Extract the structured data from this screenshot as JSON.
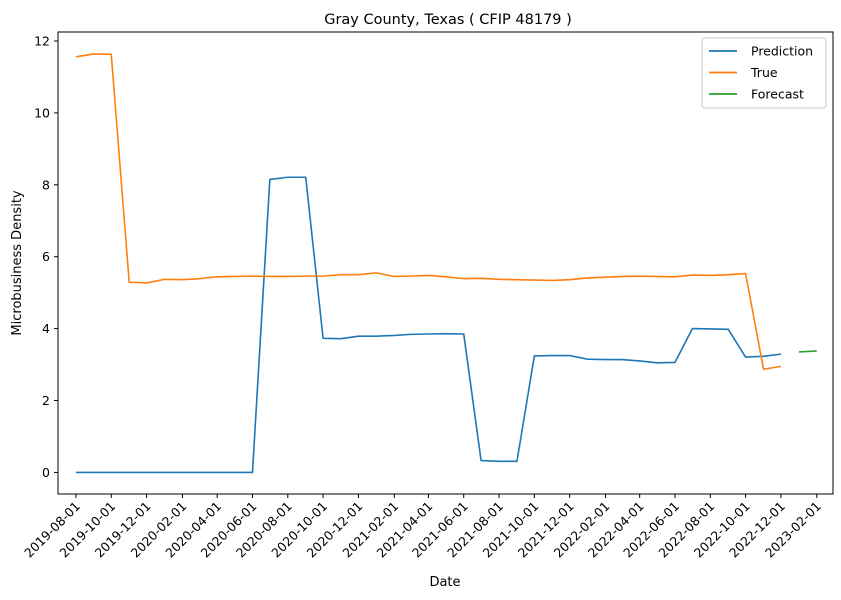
{
  "chart_data": {
    "type": "line",
    "title": "Gray County, Texas ( CFIP 48179 )",
    "xlabel": "Date",
    "ylabel": "Microbusiness Density",
    "xlim": [
      "2019-07-01",
      "2023-03-01"
    ],
    "ylim": [
      -0.6,
      12.25
    ],
    "yticks": [
      0,
      2,
      4,
      6,
      8,
      10,
      12
    ],
    "xticks": [
      "2019-08-01",
      "2019-10-01",
      "2019-12-01",
      "2020-02-01",
      "2020-04-01",
      "2020-06-01",
      "2020-08-01",
      "2020-10-01",
      "2020-12-01",
      "2021-02-01",
      "2021-04-01",
      "2021-06-01",
      "2021-08-01",
      "2021-10-01",
      "2021-12-01",
      "2022-02-01",
      "2022-04-01",
      "2022-06-01",
      "2022-08-01",
      "2022-10-01",
      "2022-12-01",
      "2023-02-01"
    ],
    "grid": false,
    "legend_position": "top-right",
    "series": [
      {
        "name": "Prediction",
        "color": "#1f77b4",
        "points": [
          [
            "2019-08-01",
            0
          ],
          [
            "2019-09-01",
            0
          ],
          [
            "2019-10-01",
            0
          ],
          [
            "2019-11-01",
            0
          ],
          [
            "2019-12-01",
            0
          ],
          [
            "2020-01-01",
            0
          ],
          [
            "2020-02-01",
            0
          ],
          [
            "2020-03-01",
            0
          ],
          [
            "2020-04-01",
            0
          ],
          [
            "2020-05-01",
            0
          ],
          [
            "2020-06-01",
            0
          ],
          [
            "2020-07-01",
            8.15
          ],
          [
            "2020-08-01",
            8.21
          ],
          [
            "2020-09-01",
            8.21
          ],
          [
            "2020-10-01",
            3.73
          ],
          [
            "2020-11-01",
            3.72
          ],
          [
            "2020-12-01",
            3.79
          ],
          [
            "2021-01-01",
            3.79
          ],
          [
            "2021-02-01",
            3.81
          ],
          [
            "2021-03-01",
            3.84
          ],
          [
            "2021-04-01",
            3.85
          ],
          [
            "2021-05-01",
            3.86
          ],
          [
            "2021-06-01",
            3.85
          ],
          [
            "2021-07-01",
            0.33
          ],
          [
            "2021-08-01",
            0.31
          ],
          [
            "2021-09-01",
            0.31
          ],
          [
            "2021-10-01",
            3.24
          ],
          [
            "2021-11-01",
            3.25
          ],
          [
            "2021-12-01",
            3.25
          ],
          [
            "2022-01-01",
            3.15
          ],
          [
            "2022-02-01",
            3.14
          ],
          [
            "2022-03-01",
            3.14
          ],
          [
            "2022-04-01",
            3.1
          ],
          [
            "2022-05-01",
            3.05
          ],
          [
            "2022-06-01",
            3.06
          ],
          [
            "2022-07-01",
            4.0
          ],
          [
            "2022-08-01",
            3.99
          ],
          [
            "2022-09-01",
            3.98
          ],
          [
            "2022-10-01",
            3.21
          ],
          [
            "2022-11-01",
            3.23
          ],
          [
            "2022-12-01",
            3.29
          ]
        ]
      },
      {
        "name": "True",
        "color": "#ff7f0e",
        "points": [
          [
            "2019-08-01",
            11.56
          ],
          [
            "2019-09-01",
            11.64
          ],
          [
            "2019-10-01",
            11.63
          ],
          [
            "2019-11-01",
            5.29
          ],
          [
            "2019-12-01",
            5.27
          ],
          [
            "2020-01-01",
            5.37
          ],
          [
            "2020-02-01",
            5.36
          ],
          [
            "2020-03-01",
            5.39
          ],
          [
            "2020-04-01",
            5.44
          ],
          [
            "2020-05-01",
            5.45
          ],
          [
            "2020-06-01",
            5.46
          ],
          [
            "2020-07-01",
            5.45
          ],
          [
            "2020-08-01",
            5.45
          ],
          [
            "2020-09-01",
            5.46
          ],
          [
            "2020-10-01",
            5.46
          ],
          [
            "2020-11-01",
            5.5
          ],
          [
            "2020-12-01",
            5.5
          ],
          [
            "2021-01-01",
            5.55
          ],
          [
            "2021-02-01",
            5.45
          ],
          [
            "2021-03-01",
            5.46
          ],
          [
            "2021-04-01",
            5.48
          ],
          [
            "2021-05-01",
            5.44
          ],
          [
            "2021-06-01",
            5.39
          ],
          [
            "2021-07-01",
            5.4
          ],
          [
            "2021-08-01",
            5.37
          ],
          [
            "2021-09-01",
            5.36
          ],
          [
            "2021-10-01",
            5.35
          ],
          [
            "2021-11-01",
            5.34
          ],
          [
            "2021-12-01",
            5.36
          ],
          [
            "2022-01-01",
            5.41
          ],
          [
            "2022-02-01",
            5.43
          ],
          [
            "2022-03-01",
            5.45
          ],
          [
            "2022-04-01",
            5.46
          ],
          [
            "2022-05-01",
            5.45
          ],
          [
            "2022-06-01",
            5.44
          ],
          [
            "2022-07-01",
            5.49
          ],
          [
            "2022-08-01",
            5.48
          ],
          [
            "2022-09-01",
            5.5
          ],
          [
            "2022-10-01",
            5.53
          ],
          [
            "2022-11-01",
            2.87
          ],
          [
            "2022-12-01",
            2.95
          ]
        ]
      },
      {
        "name": "Forecast",
        "color": "#2ca02c",
        "points": [
          [
            "2023-01-01",
            3.35
          ],
          [
            "2023-02-01",
            3.38
          ]
        ]
      }
    ]
  }
}
